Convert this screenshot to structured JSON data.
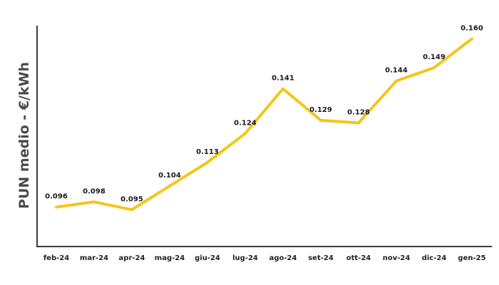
{
  "chart_data": {
    "type": "line",
    "title": "",
    "xlabel": "",
    "ylabel": "PUN medio - €/kWh",
    "categories": [
      "feb-24",
      "mar-24",
      "apr-24",
      "mag-24",
      "giu-24",
      "lug-24",
      "ago-24",
      "set-24",
      "ott-24",
      "nov-24",
      "dic-24",
      "gen-25"
    ],
    "series": [
      {
        "values": [
          0.096,
          0.098,
          0.095,
          0.104,
          0.113,
          0.124,
          0.141,
          0.129,
          0.128,
          0.144,
          0.149,
          0.16
        ],
        "labels": [
          "0.096",
          "0.098",
          "0.095",
          "0.104",
          "0.113",
          "0.124",
          "0.141",
          "0.129",
          "0.128",
          "0.144",
          "0.149",
          "0.160"
        ],
        "color": "#f5c518"
      }
    ],
    "ylim": [
      0.081,
      0.165
    ],
    "grid": false,
    "legend": "none"
  }
}
